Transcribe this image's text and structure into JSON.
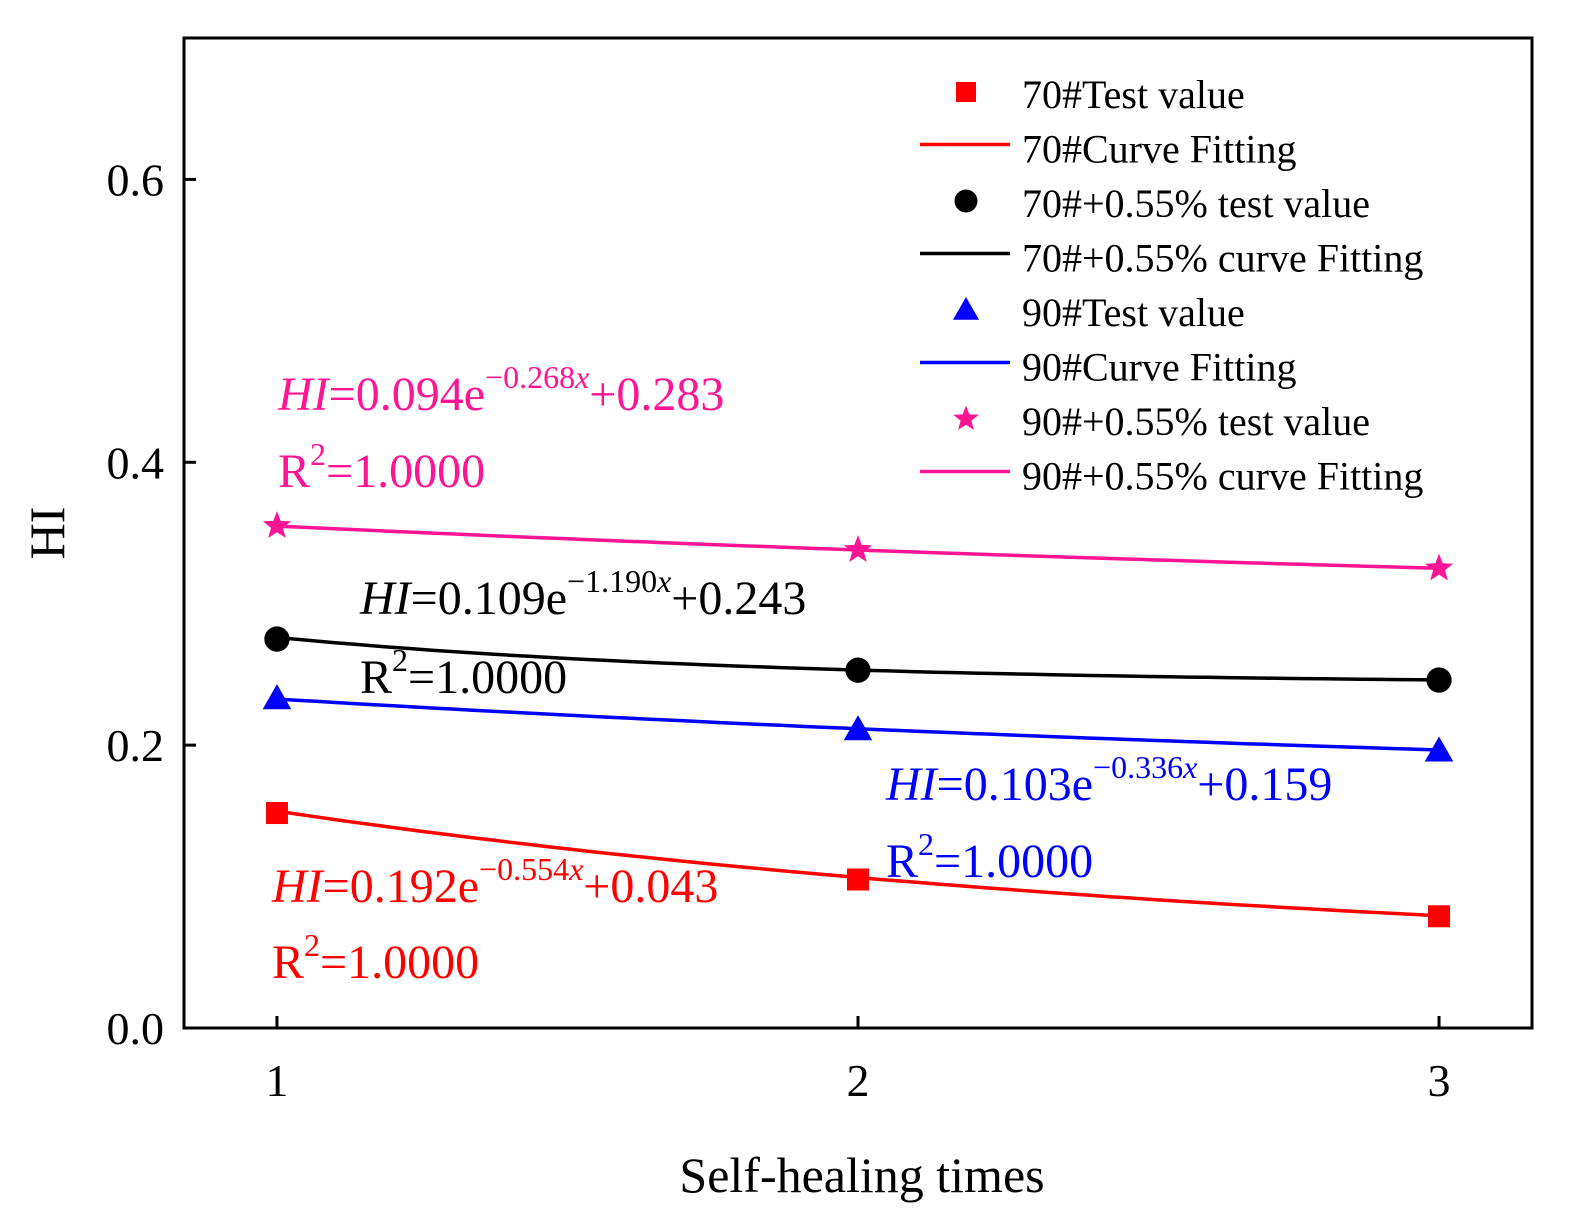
{
  "chart_data": {
    "type": "line",
    "xlabel": "Self-healing times",
    "ylabel": "HI",
    "xlim": [
      0.84,
      3.16
    ],
    "ylim": [
      0,
      0.7
    ],
    "xticks": [
      1,
      2,
      3
    ],
    "xtick_labels": [
      "1",
      "2",
      "3"
    ],
    "yticks": [
      0,
      0.2,
      0.4,
      0.6
    ],
    "ytick_labels": [
      "0.0",
      "0.2",
      "0.4",
      "0.6"
    ],
    "legend_position": "top-right",
    "series": [
      {
        "name": "70#Test value",
        "fit_name": "70#Curve Fitting",
        "marker": "square",
        "color": "#ff0000",
        "x": [
          1,
          2,
          3
        ],
        "values": [
          0.152,
          0.105,
          0.079
        ],
        "fit": {
          "a": 0.192,
          "b": -0.554,
          "c": 0.043
        },
        "equation": {
          "lhs": "HI",
          "coef": "=0.192e",
          "exp": "−0.554",
          "var": "x",
          "const": "+0.043",
          "r2": "=1.0000"
        }
      },
      {
        "name": "70#+0.55% test value",
        "fit_name": "70#+0.55% curve Fitting",
        "marker": "circle",
        "color": "#000000",
        "x": [
          1,
          2,
          3
        ],
        "values": [
          0.275,
          0.253,
          0.246
        ],
        "fit": {
          "a": 0.109,
          "b": -1.19,
          "c": 0.243
        },
        "equation": {
          "lhs": "HI",
          "coef": "=0.109e",
          "exp": "−1.190",
          "var": "x",
          "const": "+0.243",
          "r2": "=1.0000"
        }
      },
      {
        "name": "90#Test value",
        "fit_name": "90#Curve Fitting",
        "marker": "triangle",
        "color": "#0000ff",
        "x": [
          1,
          2,
          3
        ],
        "values": [
          0.233,
          0.211,
          0.196
        ],
        "fit": {
          "a": 0.103,
          "b": -0.336,
          "c": 0.159
        },
        "equation": {
          "lhs": "HI",
          "coef": "=0.103e",
          "exp": "−0.336",
          "var": "x",
          "const": "+0.159",
          "r2": "=1.0000"
        }
      },
      {
        "name": "90#+0.55% test value",
        "fit_name": "90#+0.55% curve Fitting",
        "marker": "star",
        "color": "#ff1493",
        "x": [
          1,
          2,
          3
        ],
        "values": [
          0.355,
          0.338,
          0.325
        ],
        "fit": {
          "a": 0.094,
          "b": -0.268,
          "c": 0.283
        },
        "equation": {
          "lhs": "HI",
          "coef": "=0.094e",
          "exp": "−0.268",
          "var": "x",
          "const": "+0.283",
          "r2": "=1.0000"
        }
      }
    ]
  }
}
